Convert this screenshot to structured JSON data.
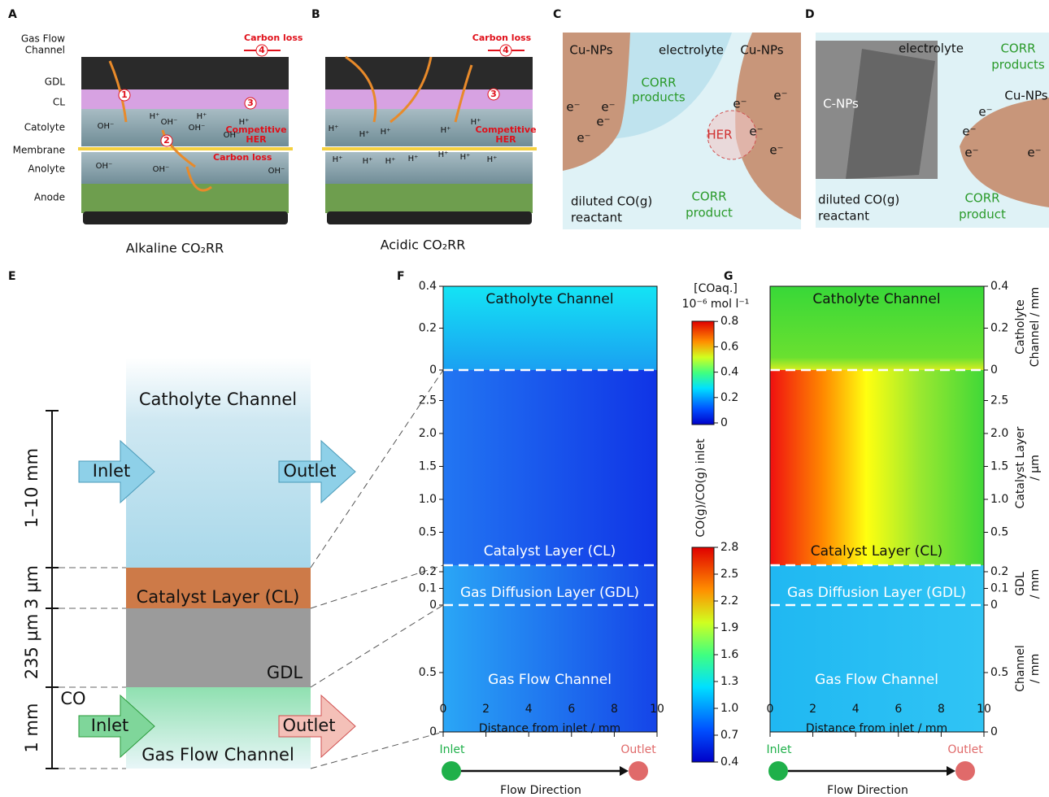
{
  "A": {
    "letter": "A",
    "gas_flow_channel": [
      "Gas Flow",
      "Channel"
    ],
    "layers": [
      "GDL",
      "CL",
      "Catolyte",
      "Membrane",
      "Anolyte",
      "Anode"
    ],
    "steps": [
      1,
      2,
      3,
      4
    ],
    "carbon_loss": "Carbon loss",
    "competitive_her": [
      "Competitive",
      "HER"
    ],
    "ions": {
      "oh": "OH⁻",
      "h": "H⁺"
    },
    "caption": "Alkaline CO₂RR"
  },
  "B": {
    "letter": "B",
    "carbon_loss": "Carbon loss",
    "competitive_her": [
      "Competitive",
      "HER"
    ],
    "steps": [
      3,
      4
    ],
    "ion": "H⁺",
    "caption": "Acidic CO₂RR"
  },
  "C": {
    "letter": "C",
    "cu_nps": "Cu-NPs",
    "electrolyte": "electrolyte",
    "corr_products": [
      "CORR",
      "products"
    ],
    "her": "HER",
    "reactant": [
      "diluted CO(g)",
      "reactant"
    ],
    "corr_product": [
      "CORR",
      "product"
    ],
    "electron": "e⁻"
  },
  "D": {
    "letter": "D",
    "electrolyte": "electrolyte",
    "corr_products": [
      "CORR",
      "products"
    ],
    "cu_nps": "Cu-NPs",
    "c_nps": "C-NPs",
    "reactant": [
      "diluted CO(g)",
      "reactant"
    ],
    "corr_product": [
      "CORR",
      "product"
    ],
    "electron": "e⁻"
  },
  "E": {
    "letter": "E",
    "catholyte": "Catholyte Channel",
    "inlet": "Inlet",
    "outlet": "Outlet",
    "cl": "Catalyst Layer (CL)",
    "gdl": "GDL",
    "co": "CO",
    "gas_channel": "Gas Flow Channel",
    "scale": [
      "1–10 mm",
      "3 µm",
      "235 µm",
      "1 mm"
    ]
  },
  "F": {
    "letter": "F",
    "regions": [
      "Catholyte Channel",
      "Catalyst Layer (CL)",
      "Gas Diffusion Layer (GDL)",
      "Gas Flow Channel"
    ],
    "yticks": {
      "catholyte": [
        0.4,
        0.2,
        0
      ],
      "cl": [
        "2.5",
        "2.0",
        "1.5",
        "1.0",
        0.5
      ],
      "gdl": [
        0.2,
        0.1,
        0
      ],
      "channel": [
        0.5,
        0
      ]
    },
    "xticks": [
      0,
      2,
      4,
      6,
      8,
      10
    ],
    "xlabel": "Distance from inlet / mm",
    "inlet": "Inlet",
    "outlet": "Outlet",
    "flow": "Flow Direction"
  },
  "colorbars": [
    {
      "label": [
        "[COaq.]",
        "10⁻⁶ mol l⁻¹"
      ],
      "ticks": [
        0.8,
        0.6,
        0.4,
        0.2,
        0
      ]
    },
    {
      "label": "CO(g)/CO(g) inlet",
      "ticks": [
        2.8,
        2.5,
        2.2,
        1.9,
        1.6,
        1.3,
        "1.0",
        0.7,
        0.4
      ]
    }
  ],
  "G": {
    "letter": "G",
    "regions": [
      "Catholyte Channel",
      "Catalyst Layer (CL)",
      "Gas Diffusion Layer (GDL)",
      "Gas Flow Channel"
    ],
    "yticks": {
      "catholyte": [
        0.4,
        0.2,
        0
      ],
      "cl": [
        "2.5",
        "2.0",
        "1.5",
        "1.0",
        0.5
      ],
      "gdl": [
        0.2,
        0.1,
        0
      ],
      "channel": [
        0.5,
        0
      ]
    },
    "axis_titles": [
      [
        "Catholyte",
        "Channel / mm"
      ],
      [
        "Catalyst Layer",
        "/ µm"
      ],
      [
        "GDL",
        "/ mm"
      ],
      [
        "Channel",
        "/ mm"
      ]
    ],
    "xticks": [
      0,
      2,
      4,
      6,
      8,
      10
    ],
    "xlabel": "Distance from inlet / mm",
    "inlet": "Inlet",
    "outlet": "Outlet",
    "flow": "Flow Direction"
  }
}
